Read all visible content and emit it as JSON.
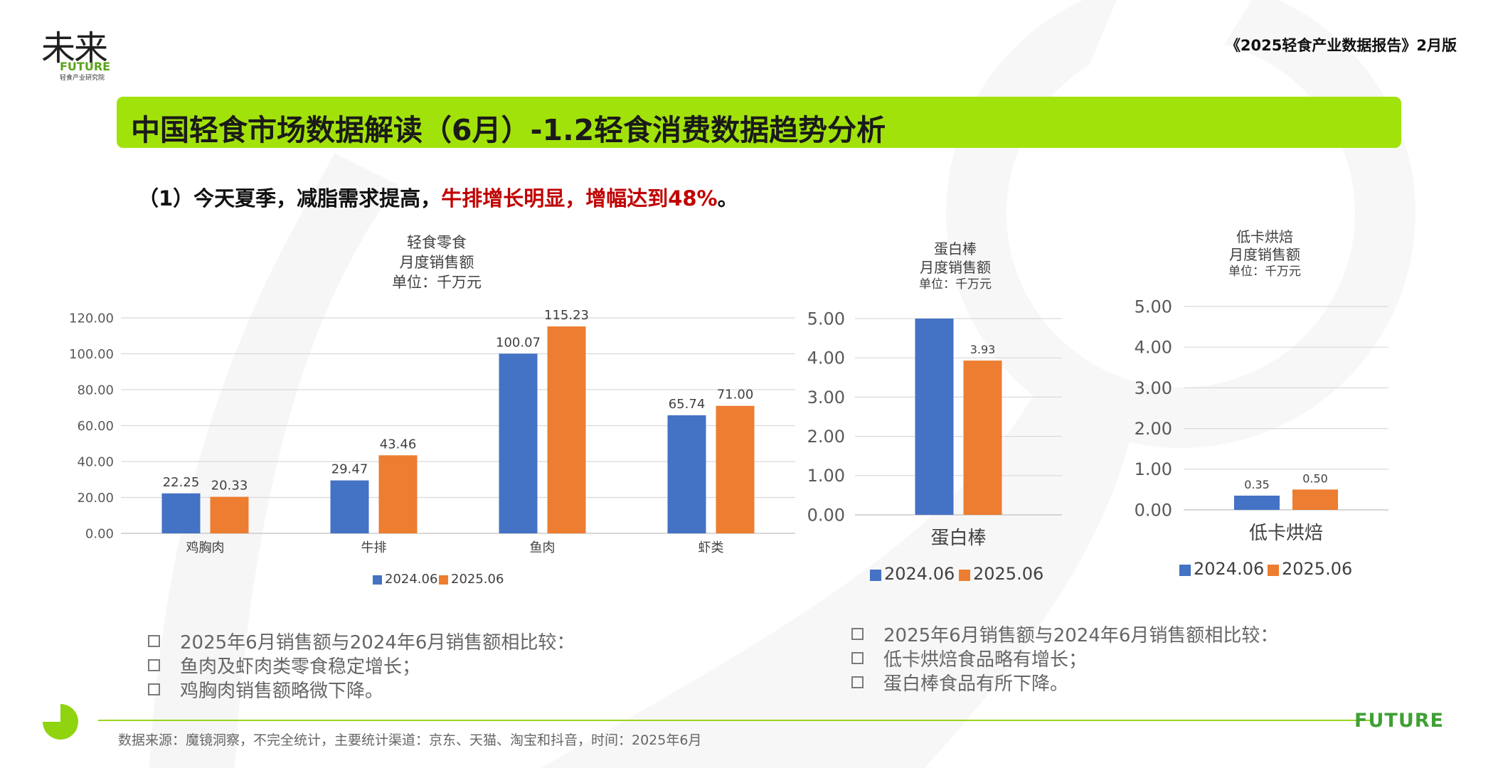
{
  "brand": {
    "logo_cn": "未来",
    "logo_en": "FUTURE",
    "logo_sub": "轻食产业研究院",
    "footer_logo": "FUTURE"
  },
  "header": {
    "report_title": "《2025轻食产业数据报告》2月版"
  },
  "title": "中国轻食市场数据解读（6月）-1.2轻食消费数据趋势分析",
  "subtitle": {
    "prefix": "（1）今天夏季，减脂需求提高，",
    "highlight": "牛排增长明显，增幅达到48%",
    "suffix": "。"
  },
  "colors": {
    "series_2024": "#4472c4",
    "series_2025": "#ed7d31",
    "accent_green": "#a2e20b",
    "highlight_red": "#c00000"
  },
  "chart_data": [
    {
      "type": "bar",
      "title": "轻食零食\n月度销售额\n单位：千万元",
      "categories": [
        "鸡胸肉",
        "牛排",
        "鱼肉",
        "虾类"
      ],
      "series": [
        {
          "name": "2024.06",
          "values": [
            22.25,
            29.47,
            100.07,
            65.74
          ],
          "labels": [
            "22.25",
            "29.47",
            "100.07",
            "65.74"
          ]
        },
        {
          "name": "2025.06",
          "values": [
            20.33,
            43.46,
            115.23,
            71.0
          ],
          "labels": [
            "20.33",
            "43.46",
            "115.23",
            "71.00"
          ]
        }
      ],
      "ylim": [
        0,
        120
      ],
      "yticks": [
        "0.00",
        "20.00",
        "40.00",
        "60.00",
        "80.00",
        "100.00",
        "120.00"
      ],
      "grid": true,
      "legend": "bottom"
    },
    {
      "type": "bar",
      "title": "蛋白棒\n月度销售额\n单位：千万元",
      "categories": [
        "蛋白棒"
      ],
      "series": [
        {
          "name": "2024.06",
          "values": [
            5.0
          ],
          "labels": [
            ""
          ]
        },
        {
          "name": "2025.06",
          "values": [
            3.93
          ],
          "labels": [
            "3.93"
          ]
        }
      ],
      "ylim": [
        0,
        5
      ],
      "yticks": [
        "0.00",
        "1.00",
        "2.00",
        "3.00",
        "4.00",
        "5.00"
      ],
      "grid": true,
      "legend": "bottom"
    },
    {
      "type": "bar",
      "title": "低卡烘焙\n月度销售额\n单位：千万元",
      "categories": [
        "低卡烘焙"
      ],
      "series": [
        {
          "name": "2024.06",
          "values": [
            0.35
          ],
          "labels": [
            "0.35"
          ]
        },
        {
          "name": "2025.06",
          "values": [
            0.5
          ],
          "labels": [
            "0.50"
          ]
        }
      ],
      "ylim": [
        0,
        5
      ],
      "yticks": [
        "0.00",
        "1.00",
        "2.00",
        "3.00",
        "4.00",
        "5.00"
      ],
      "grid": true,
      "legend": "bottom"
    }
  ],
  "notes_left": [
    "2025年6月销售额与2024年6月销售额相比较：",
    "鱼肉及虾肉类零食稳定增长；",
    "鸡胸肉销售额略微下降。"
  ],
  "notes_right": [
    "2025年6月销售额与2024年6月销售额相比较：",
    "低卡烘焙食品略有增长；",
    "蛋白棒食品有所下降。"
  ],
  "footer": {
    "source": "数据来源：魔镜洞察，不完全统计，主要统计渠道：京东、天猫、淘宝和抖音，时间：2025年6月"
  }
}
